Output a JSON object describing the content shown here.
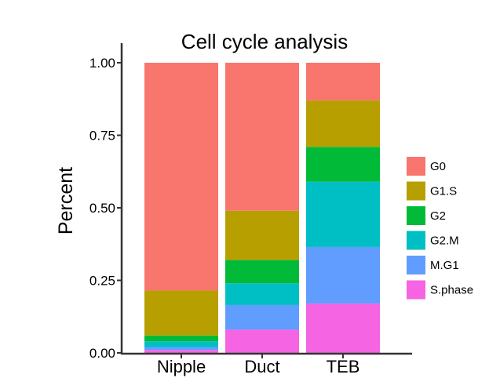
{
  "chart_data": {
    "type": "bar",
    "stacked": true,
    "title": "Cell cycle analysis",
    "xlabel": "",
    "ylabel": "Percent",
    "ylim": [
      0,
      1
    ],
    "yticks": [
      "0.00",
      "0.25",
      "0.50",
      "0.75",
      "1.00"
    ],
    "ytick_values": [
      0,
      0.25,
      0.5,
      0.75,
      1.0
    ],
    "categories": [
      "Nipple",
      "Duct",
      "TEB"
    ],
    "legend_position": "right",
    "series": [
      {
        "name": "S.phase",
        "color": "#F564E3",
        "values": [
          0.01,
          0.08,
          0.17
        ]
      },
      {
        "name": "M.G1",
        "color": "#619CFF",
        "values": [
          0.01,
          0.085,
          0.195
        ]
      },
      {
        "name": "G2.M",
        "color": "#00BFC4",
        "values": [
          0.02,
          0.075,
          0.225
        ]
      },
      {
        "name": "G2",
        "color": "#00BA38",
        "values": [
          0.02,
          0.08,
          0.12
        ]
      },
      {
        "name": "G1.S",
        "color": "#B79F00",
        "values": [
          0.155,
          0.17,
          0.16
        ]
      },
      {
        "name": "G0",
        "color": "#F8766D",
        "values": [
          0.785,
          0.51,
          0.13
        ]
      }
    ],
    "legend_order": [
      "G0",
      "G1.S",
      "G2",
      "G2.M",
      "M.G1",
      "S.phase"
    ]
  }
}
